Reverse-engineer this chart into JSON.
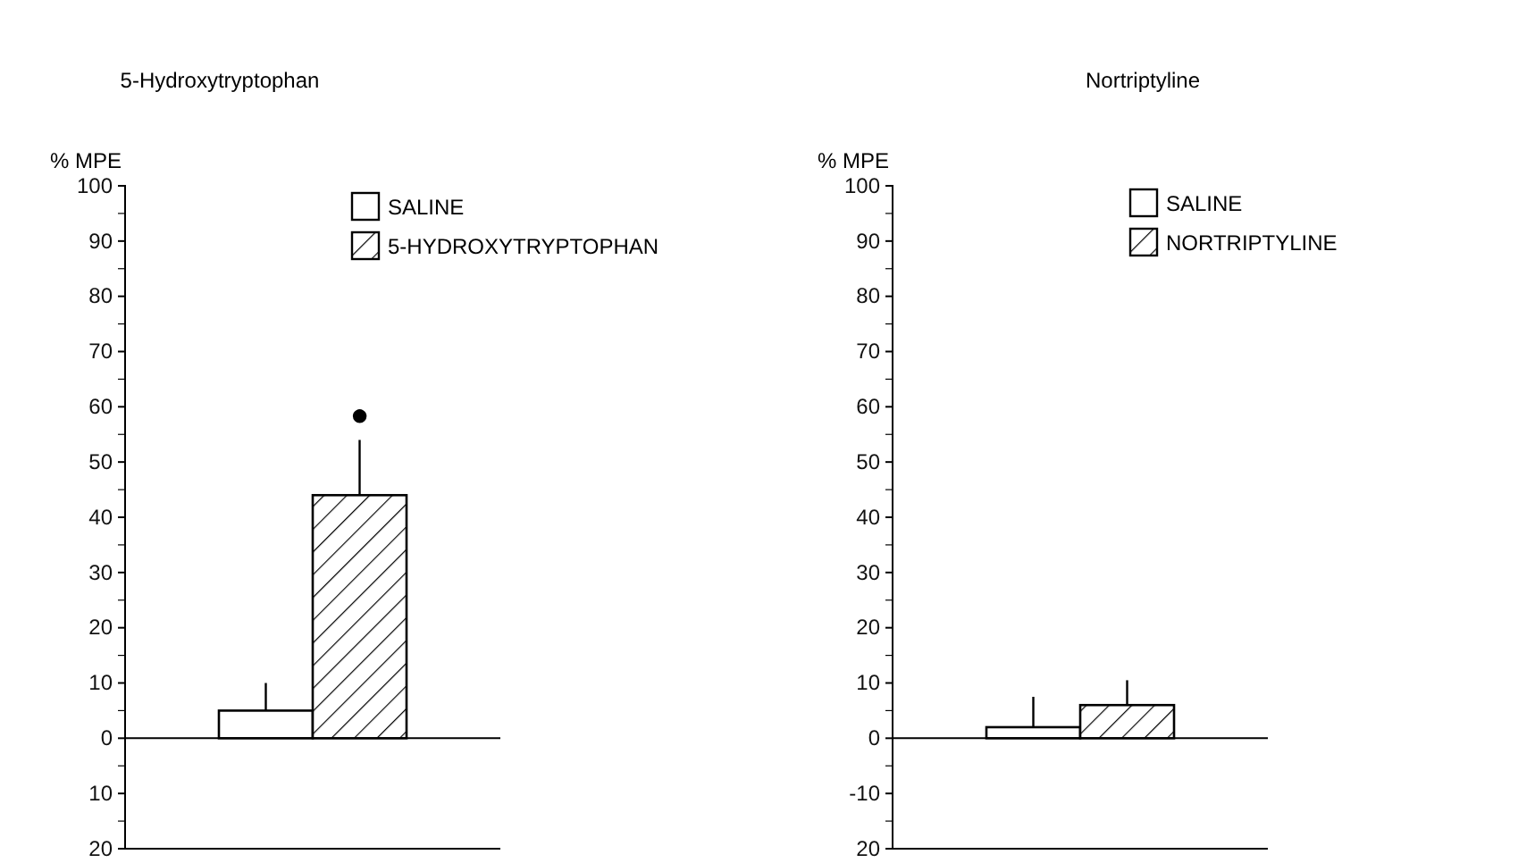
{
  "chart_data": [
    {
      "type": "bar",
      "title": "5-Hydroxytryptophan",
      "ylabel": "% MPE",
      "categories": [
        null
      ],
      "series": [
        {
          "name": "SALINE",
          "color": "#ffffff",
          "values": [
            5
          ],
          "errors": [
            [
              5,
              10
            ]
          ]
        },
        {
          "name": "5-HYDROXYTRYPTOPHAN",
          "color": "#000000",
          "values": [
            44
          ],
          "errors": [
            [
              44,
              54
            ]
          ]
        }
      ],
      "annotations": [
        "●"
      ],
      "ref_lines": [
        {
          "axis": "y",
          "value": 0
        }
      ],
      "ylim": [
        -20,
        100
      ],
      "yticks": [
        {
          "value": -20,
          "label": "20"
        },
        {
          "value": -15,
          "label": null
        },
        {
          "value": -10,
          "label": "10"
        },
        {
          "value": -5,
          "label": null
        },
        0,
        {
          "value": 5,
          "label": null
        },
        10,
        {
          "value": 15,
          "label": null
        },
        20,
        {
          "value": 25,
          "label": null
        },
        30,
        {
          "value": 35,
          "label": null
        },
        40,
        {
          "value": 45,
          "label": null
        },
        50,
        {
          "value": 55,
          "label": null
        },
        60,
        {
          "value": 65,
          "label": null
        },
        70,
        {
          "value": 75,
          "label": null
        },
        80,
        {
          "value": 85,
          "label": null
        },
        90,
        {
          "value": 95,
          "label": null
        },
        100
      ],
      "legend": "top right",
      "tick_labels": "y",
      "grid": false
    },
    {
      "type": "bar",
      "title": "Nortriptyline",
      "ylabel": "% MPE",
      "categories": [
        null
      ],
      "series": [
        {
          "name": "SALINE",
          "color": "#ffffff",
          "values": [
            2
          ],
          "errors": [
            [
              2,
              7.5
            ]
          ]
        },
        {
          "name": "NORTRIPTYLINE",
          "color": "#000000",
          "values": [
            6
          ],
          "errors": [
            [
              6,
              10.5
            ]
          ]
        }
      ],
      "ref_lines": [
        {
          "axis": "y",
          "value": 0
        }
      ],
      "ylim": [
        -20,
        100
      ],
      "yticks": [
        {
          "value": -20,
          "label": "20"
        },
        {
          "value": -15,
          "label": null
        },
        {
          "value": -10,
          "label": "-10"
        },
        {
          "value": -5,
          "label": null
        },
        0,
        {
          "value": 5,
          "label": null
        },
        10,
        {
          "value": 15,
          "label": null
        },
        20,
        {
          "value": 25,
          "label": null
        },
        30,
        {
          "value": 35,
          "label": null
        },
        40,
        {
          "value": 45,
          "label": null
        },
        50,
        {
          "value": 55,
          "label": null
        },
        60,
        {
          "value": 65,
          "label": null
        },
        70,
        {
          "value": 75,
          "label": null
        },
        80,
        {
          "value": 85,
          "label": null
        },
        90,
        {
          "value": 95,
          "label": null
        },
        100
      ],
      "legend": "top right",
      "tick_labels": "y",
      "grid": false
    }
  ]
}
